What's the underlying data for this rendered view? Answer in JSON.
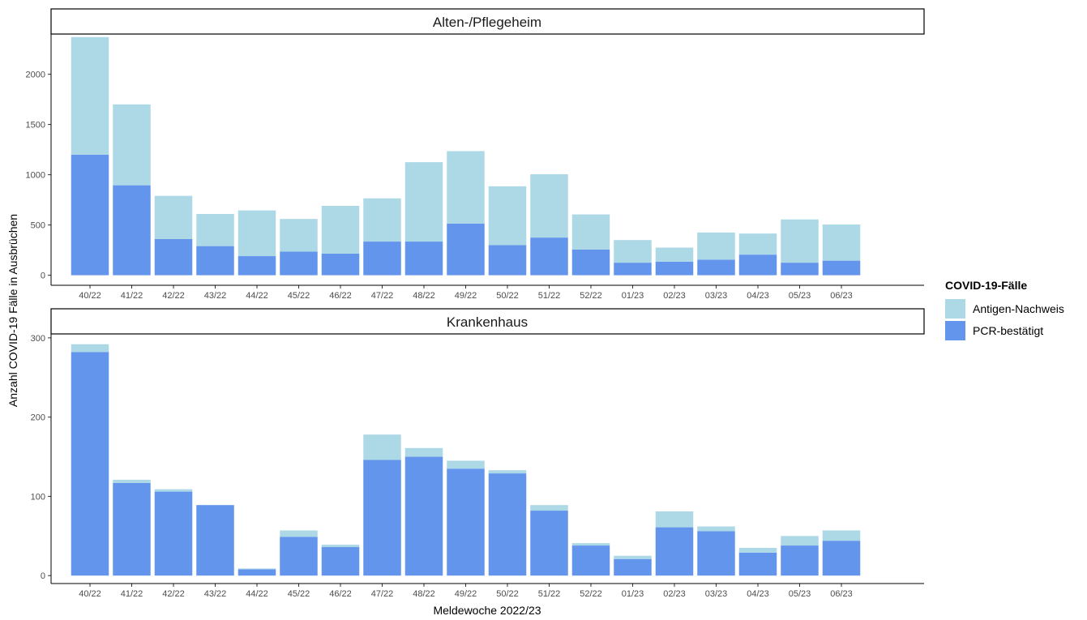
{
  "chart_data": {
    "type": "bar",
    "stacked": true,
    "xlabel": "Meldewoche 2022/23",
    "ylabel": "Anzahl COVID-19 Fälle in Ausbrüchen",
    "categories": [
      "40/22",
      "41/22",
      "42/22",
      "43/22",
      "44/22",
      "45/22",
      "46/22",
      "47/22",
      "48/22",
      "49/22",
      "50/22",
      "51/22",
      "52/22",
      "01/23",
      "02/23",
      "03/23",
      "04/23",
      "05/23",
      "06/23"
    ],
    "legend": {
      "title": "COVID-19-Fälle",
      "position": "right",
      "items": [
        {
          "label": "Antigen-Nachweis",
          "color": "#add8e6"
        },
        {
          "label": "PCR-bestätigt",
          "color": "#6495ed"
        }
      ]
    },
    "panels": [
      {
        "title": "Alten-/Pflegeheim",
        "ylim": [
          -100,
          2400
        ],
        "yticks": [
          0,
          500,
          1000,
          1500,
          2000
        ],
        "series": [
          {
            "name": "PCR-bestätigt",
            "color": "#6495ed",
            "values": [
              1200,
              895,
              360,
              290,
              190,
              235,
              215,
              335,
              335,
              515,
              300,
              375,
              255,
              125,
              135,
              155,
              205,
              125,
              145
            ]
          },
          {
            "name": "Antigen-Nachweis",
            "color": "#add8e6",
            "values": [
              1170,
              805,
              430,
              320,
              455,
              325,
              475,
              430,
              790,
              720,
              585,
              630,
              350,
              225,
              140,
              270,
              210,
              430,
              360
            ]
          }
        ]
      },
      {
        "title": "Krankenhaus",
        "ylim": [
          -10,
          305
        ],
        "yticks": [
          0,
          100,
          200,
          300
        ],
        "series": [
          {
            "name": "PCR-bestätigt",
            "color": "#6495ed",
            "values": [
              282,
              117,
              106,
              89,
              8,
              49,
              36,
              146,
              150,
              135,
              129,
              82,
              38,
              21,
              61,
              56,
              29,
              38,
              44
            ]
          },
          {
            "name": "Antigen-Nachweis",
            "color": "#add8e6",
            "values": [
              10,
              4,
              3,
              0,
              1,
              8,
              3,
              32,
              11,
              10,
              4,
              7,
              3,
              4,
              20,
              6,
              6,
              12,
              13
            ]
          }
        ]
      }
    ]
  }
}
